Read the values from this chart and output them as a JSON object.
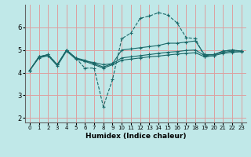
{
  "title": "",
  "xlabel": "Humidex (Indice chaleur)",
  "bg_color": "#c0e8e8",
  "grid_color": "#dca0a0",
  "line_color": "#1a6868",
  "xlim": [
    -0.5,
    23.5
  ],
  "ylim": [
    1.8,
    7.0
  ],
  "yticks": [
    2,
    3,
    4,
    5,
    6
  ],
  "xticks": [
    0,
    1,
    2,
    3,
    4,
    5,
    6,
    7,
    8,
    9,
    10,
    11,
    12,
    13,
    14,
    15,
    16,
    17,
    18,
    19,
    20,
    21,
    22,
    23
  ],
  "series": {
    "dashed": [
      4.1,
      4.7,
      4.8,
      4.35,
      5.0,
      4.65,
      4.2,
      4.2,
      2.5,
      3.7,
      5.5,
      5.75,
      6.4,
      6.5,
      6.65,
      6.55,
      6.2,
      5.55,
      5.5,
      4.7,
      4.75,
      4.95,
      5.0,
      4.95
    ],
    "solid1": [
      4.1,
      4.7,
      4.8,
      4.35,
      5.0,
      4.65,
      4.5,
      4.45,
      4.35,
      4.4,
      5.0,
      5.05,
      5.1,
      5.15,
      5.2,
      5.3,
      5.3,
      5.35,
      5.4,
      4.8,
      4.8,
      4.95,
      5.0,
      4.95
    ],
    "solid2": [
      4.1,
      4.7,
      4.75,
      4.35,
      5.0,
      4.65,
      4.55,
      4.4,
      4.25,
      4.4,
      4.65,
      4.7,
      4.75,
      4.8,
      4.85,
      4.9,
      4.93,
      4.98,
      5.0,
      4.75,
      4.8,
      4.9,
      4.95,
      4.95
    ],
    "solid3": [
      4.1,
      4.65,
      4.75,
      4.3,
      4.95,
      4.6,
      4.5,
      4.35,
      4.2,
      4.35,
      4.55,
      4.6,
      4.65,
      4.7,
      4.73,
      4.78,
      4.82,
      4.85,
      4.88,
      4.7,
      4.75,
      4.85,
      4.9,
      4.92
    ]
  }
}
